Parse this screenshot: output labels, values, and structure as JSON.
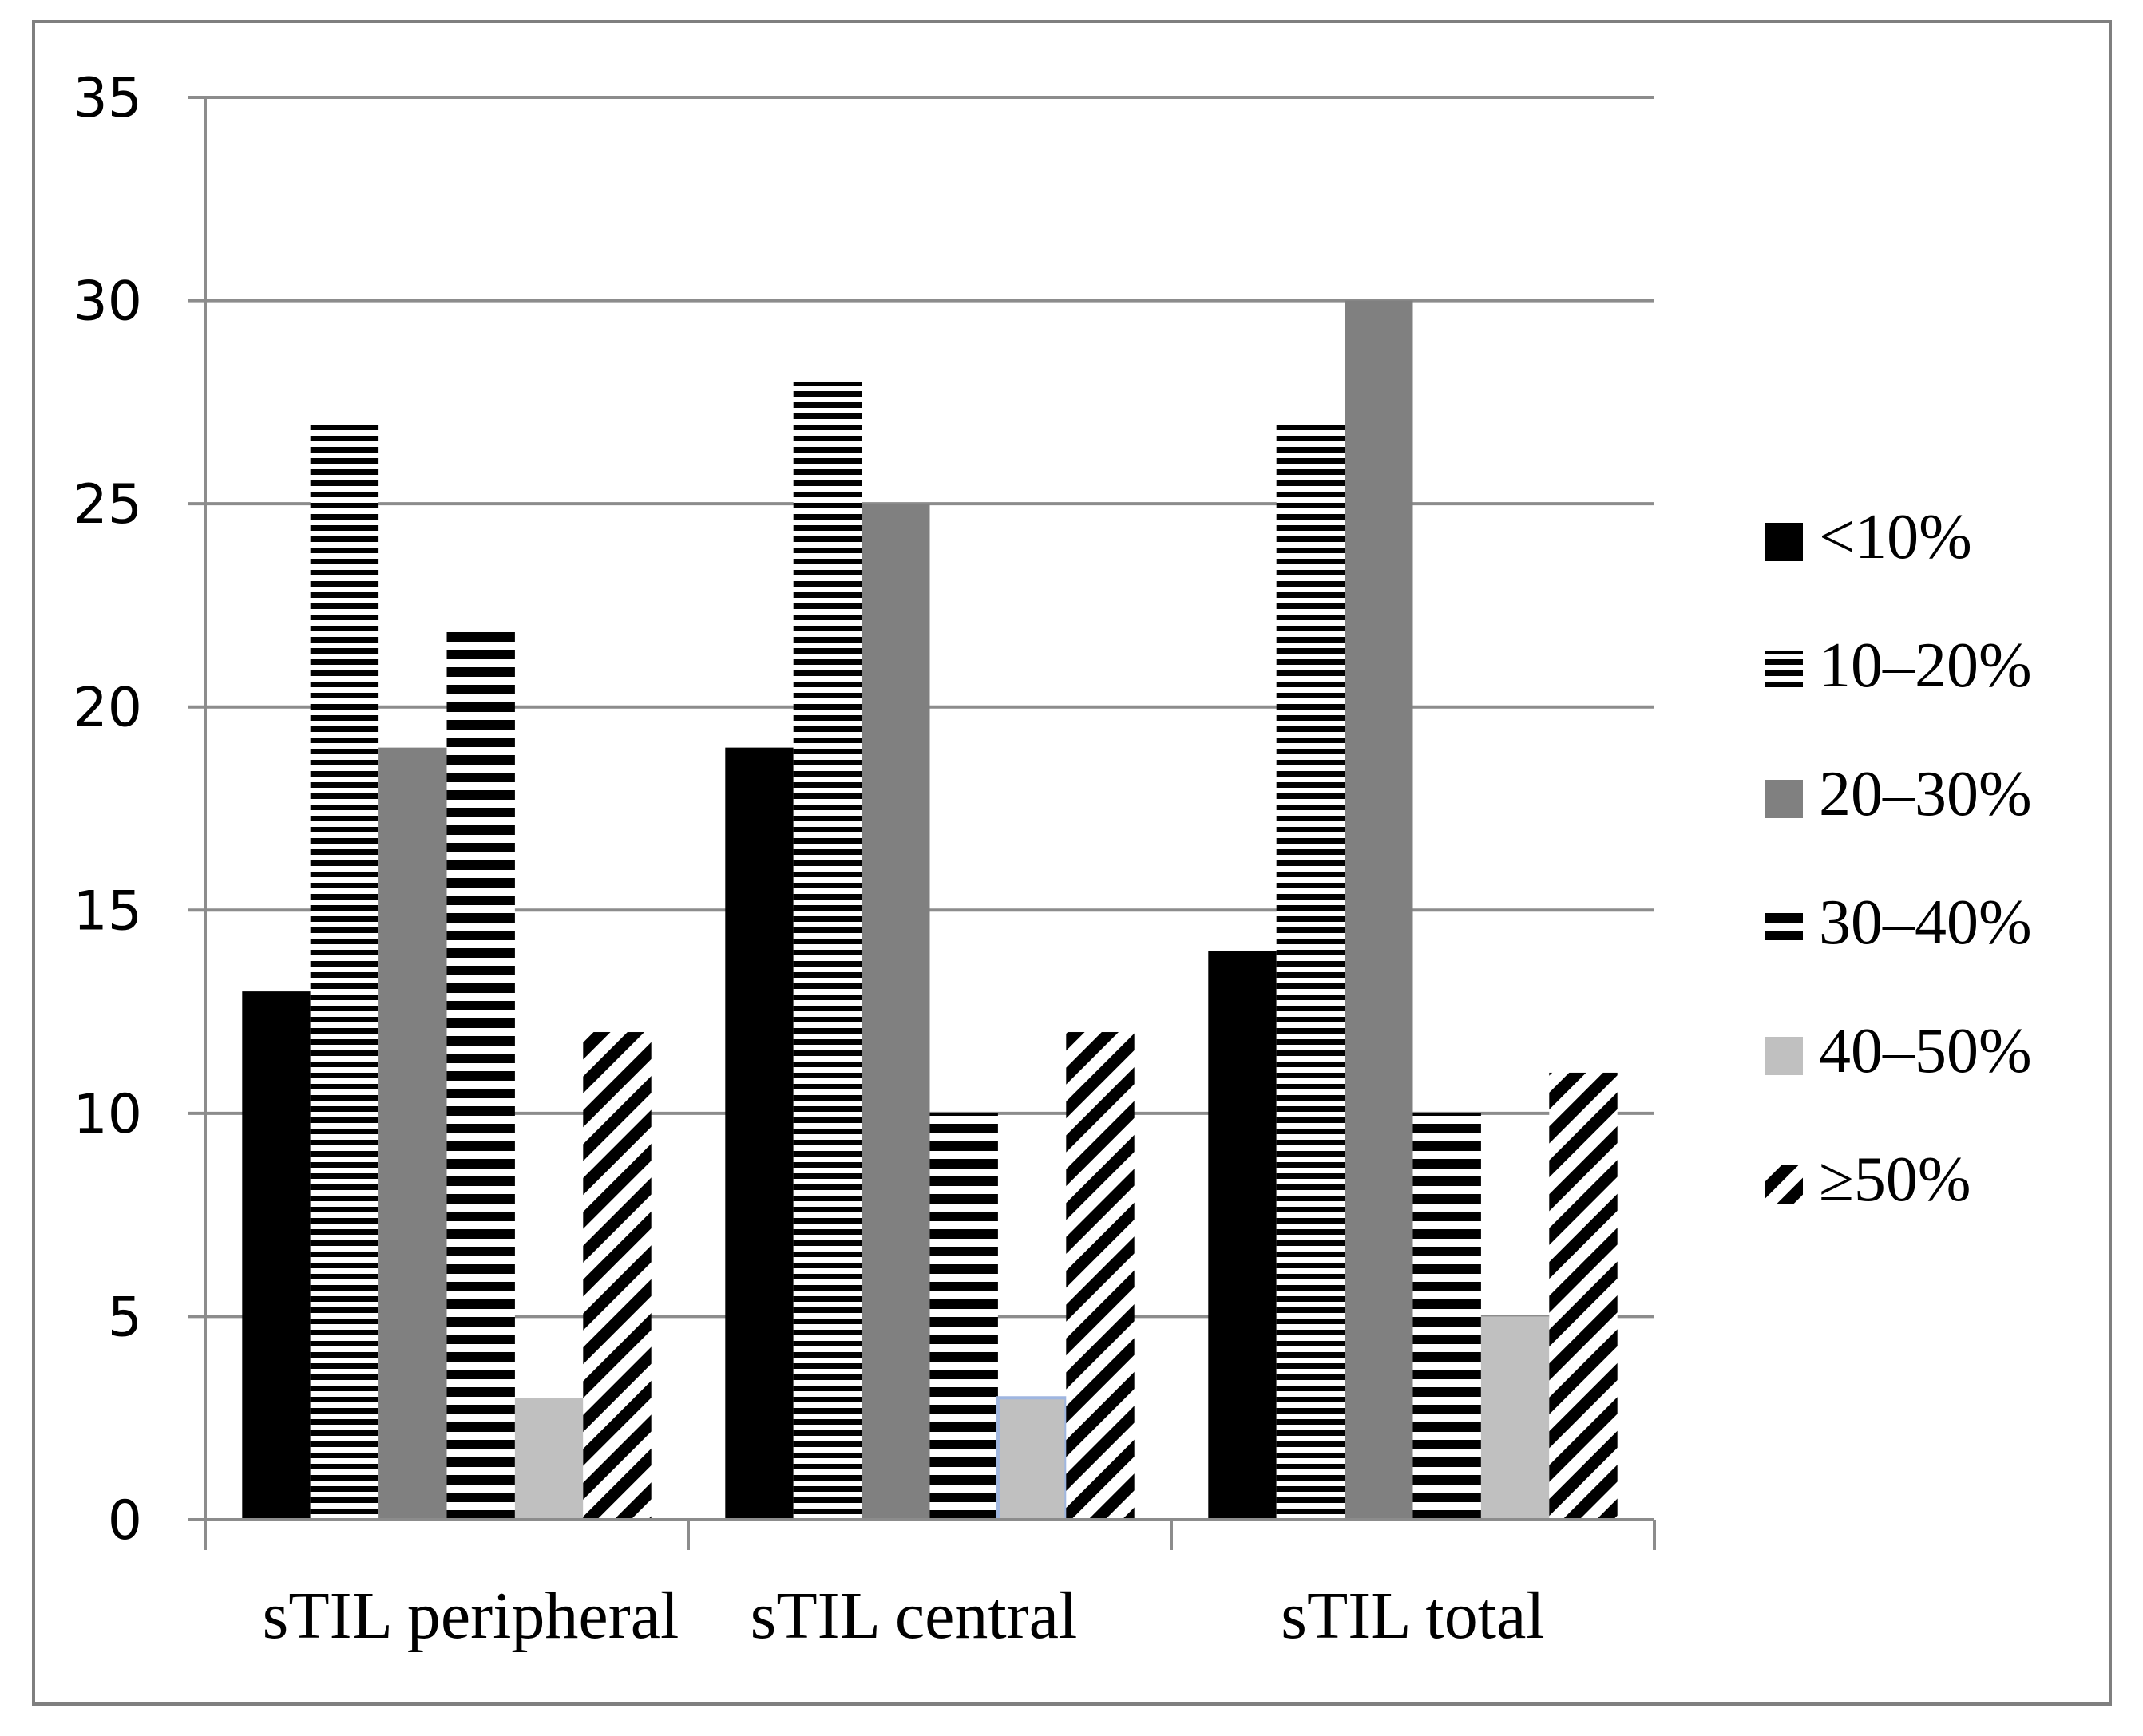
{
  "chart_data": {
    "type": "bar",
    "title": "",
    "xlabel": "",
    "ylabel": "",
    "ylim": [
      0,
      35
    ],
    "yticks": [
      0,
      5,
      10,
      15,
      20,
      25,
      30,
      35
    ],
    "grid": true,
    "legend_position": "right",
    "categories": [
      "sTIL peripheral",
      "sTIL central",
      "sTIL total"
    ],
    "series": [
      {
        "name": "<10%",
        "values": [
          13,
          19,
          14
        ],
        "pattern": "solid-black"
      },
      {
        "name": "10–20%",
        "values": [
          27,
          28,
          27
        ],
        "pattern": "fine-horizontal-stripes"
      },
      {
        "name": "20–30%",
        "values": [
          19,
          25,
          30
        ],
        "pattern": "solid-dark-gray"
      },
      {
        "name": "30–40%",
        "values": [
          22,
          10,
          10
        ],
        "pattern": "wide-horizontal-stripes"
      },
      {
        "name": "40–50%",
        "values": [
          3,
          3,
          5
        ],
        "pattern": "solid-light-gray"
      },
      {
        "name": "≥50%",
        "values": [
          12,
          12,
          11
        ],
        "pattern": "diagonal-stripes"
      }
    ],
    "colors": {
      "black": "#000000",
      "dark_gray": "#808080",
      "light_gray": "#c0c0c0",
      "grid": "#8c8c8c",
      "highlight_border": "#9fb6e0"
    }
  }
}
